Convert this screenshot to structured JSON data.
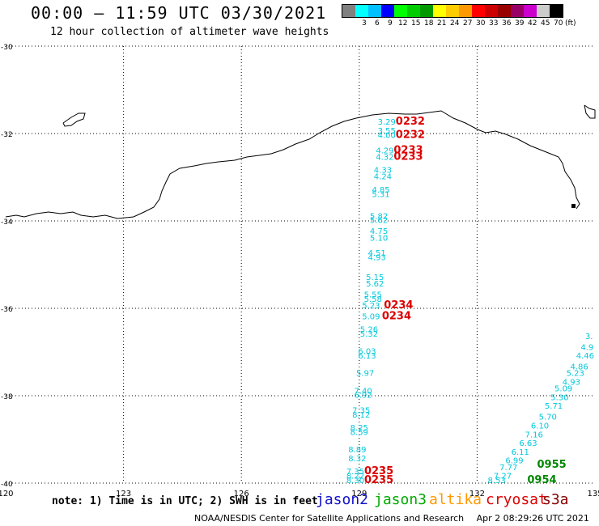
{
  "header": {
    "title": "00:00 – 11:59 UTC 03/30/2021",
    "subtitle": "12 hour collection of altimeter wave heights"
  },
  "legend": {
    "unit": "(ft)",
    "bins": [
      {
        "label": "",
        "color": "#808080"
      },
      {
        "label": "3",
        "color": "#00ffff"
      },
      {
        "label": "6",
        "color": "#00c0ff"
      },
      {
        "label": "9",
        "color": "#0000ff"
      },
      {
        "label": "12",
        "color": "#00ff00"
      },
      {
        "label": "15",
        "color": "#00cc00"
      },
      {
        "label": "18",
        "color": "#009900"
      },
      {
        "label": "21",
        "color": "#ffff00"
      },
      {
        "label": "24",
        "color": "#ffcc00"
      },
      {
        "label": "27",
        "color": "#ff9900"
      },
      {
        "label": "30",
        "color": "#ff0000"
      },
      {
        "label": "33",
        "color": "#cc0000"
      },
      {
        "label": "36",
        "color": "#990000"
      },
      {
        "label": "39",
        "color": "#990066"
      },
      {
        "label": "42",
        "color": "#cc00cc"
      },
      {
        "label": "45",
        "color": "#cccccc"
      },
      {
        "label": "70",
        "color": "#000000"
      }
    ]
  },
  "map": {
    "lon_ticks": [
      "120",
      "123",
      "126",
      "129",
      "132",
      "135"
    ],
    "lat_ticks": [
      "-30",
      "-32",
      "-34",
      "-36",
      "-38",
      "-40"
    ],
    "lon_range": [
      120,
      135
    ],
    "lat_range": [
      -30,
      -40
    ],
    "track_a_color": "#00c8dc",
    "track_a": [
      {
        "lon": 129.7,
        "lat": -31.8,
        "v": "3.29"
      },
      {
        "lon": 129.7,
        "lat": -32.0,
        "v": "3.55"
      },
      {
        "lon": 129.7,
        "lat": -32.1,
        "v": "4.00"
      },
      {
        "lon": 129.65,
        "lat": -32.45,
        "v": "4.29"
      },
      {
        "lon": 129.65,
        "lat": -32.6,
        "v": "4.32"
      },
      {
        "lon": 129.6,
        "lat": -32.9,
        "v": "4.33"
      },
      {
        "lon": 129.6,
        "lat": -33.05,
        "v": "4.24"
      },
      {
        "lon": 129.55,
        "lat": -33.35,
        "v": "4.85"
      },
      {
        "lon": 129.55,
        "lat": -33.45,
        "v": "5.31"
      },
      {
        "lon": 129.5,
        "lat": -33.95,
        "v": "5.82"
      },
      {
        "lon": 129.5,
        "lat": -34.05,
        "v": "5.62"
      },
      {
        "lon": 129.5,
        "lat": -34.3,
        "v": "4.75"
      },
      {
        "lon": 129.5,
        "lat": -34.45,
        "v": "5.10"
      },
      {
        "lon": 129.45,
        "lat": -34.8,
        "v": "4.51"
      },
      {
        "lon": 129.45,
        "lat": -34.9,
        "v": "4.93"
      },
      {
        "lon": 129.4,
        "lat": -35.35,
        "v": "5.15"
      },
      {
        "lon": 129.4,
        "lat": -35.5,
        "v": "5.62"
      },
      {
        "lon": 129.35,
        "lat": -35.75,
        "v": "5.55"
      },
      {
        "lon": 129.35,
        "lat": -35.85,
        "v": "5.58"
      },
      {
        "lon": 129.3,
        "lat": -36.0,
        "v": "5.23"
      },
      {
        "lon": 129.3,
        "lat": -36.25,
        "v": "5.09"
      },
      {
        "lon": 129.25,
        "lat": -36.55,
        "v": "5.26"
      },
      {
        "lon": 129.25,
        "lat": -36.65,
        "v": "5.32"
      },
      {
        "lon": 129.2,
        "lat": -37.05,
        "v": "6.03"
      },
      {
        "lon": 129.2,
        "lat": -37.15,
        "v": "6.13"
      },
      {
        "lon": 129.15,
        "lat": -37.55,
        "v": "5.97"
      },
      {
        "lon": 129.1,
        "lat": -37.95,
        "v": "7.40"
      },
      {
        "lon": 129.1,
        "lat": -38.05,
        "v": "6.92"
      },
      {
        "lon": 129.05,
        "lat": -38.4,
        "v": "7.35"
      },
      {
        "lon": 129.05,
        "lat": -38.5,
        "v": "8.12"
      },
      {
        "lon": 129.0,
        "lat": -38.8,
        "v": "8.25"
      },
      {
        "lon": 129.0,
        "lat": -38.9,
        "v": "8.59"
      },
      {
        "lon": 128.95,
        "lat": -39.3,
        "v": "8.89"
      },
      {
        "lon": 128.95,
        "lat": -39.5,
        "v": "8.32"
      },
      {
        "lon": 128.9,
        "lat": -39.8,
        "v": "7.35"
      },
      {
        "lon": 128.9,
        "lat": -39.9,
        "v": "8.22"
      },
      {
        "lon": 128.9,
        "lat": -40.0,
        "v": "8.30"
      }
    ],
    "track_a_times": [
      {
        "lon": 130.3,
        "lat": -31.8,
        "v": "0232"
      },
      {
        "lon": 130.3,
        "lat": -32.1,
        "v": "0232"
      },
      {
        "lon": 130.25,
        "lat": -32.45,
        "v": "0233"
      },
      {
        "lon": 130.25,
        "lat": -32.6,
        "v": "0233"
      },
      {
        "lon": 130.0,
        "lat": -36.0,
        "v": "0234"
      },
      {
        "lon": 129.95,
        "lat": -36.25,
        "v": "0234"
      },
      {
        "lon": 129.5,
        "lat": -39.8,
        "v": "0235"
      },
      {
        "lon": 129.5,
        "lat": -40.0,
        "v": "0235"
      }
    ],
    "track_a_time_color": "#dd0000",
    "track_b_color": "#00c8dc",
    "track_b": [
      {
        "lon": 134.85,
        "lat": -36.7,
        "v": "3."
      },
      {
        "lon": 134.8,
        "lat": -36.95,
        "v": "4.9"
      },
      {
        "lon": 134.75,
        "lat": -37.15,
        "v": "4.46"
      },
      {
        "lon": 134.6,
        "lat": -37.4,
        "v": "4.86"
      },
      {
        "lon": 134.5,
        "lat": -37.55,
        "v": "5.23"
      },
      {
        "lon": 134.4,
        "lat": -37.75,
        "v": "4.93"
      },
      {
        "lon": 134.2,
        "lat": -37.9,
        "v": "5.09"
      },
      {
        "lon": 134.1,
        "lat": -38.1,
        "v": "5.30"
      },
      {
        "lon": 133.95,
        "lat": -38.3,
        "v": "5.71"
      },
      {
        "lon": 133.8,
        "lat": -38.55,
        "v": "5.70"
      },
      {
        "lon": 133.6,
        "lat": -38.75,
        "v": "6.10"
      },
      {
        "lon": 133.45,
        "lat": -38.95,
        "v": "7.16"
      },
      {
        "lon": 133.3,
        "lat": -39.15,
        "v": "6.63"
      },
      {
        "lon": 133.1,
        "lat": -39.35,
        "v": "6.11"
      },
      {
        "lon": 132.95,
        "lat": -39.55,
        "v": "6.99"
      },
      {
        "lon": 132.8,
        "lat": -39.7,
        "v": "7.77"
      },
      {
        "lon": 132.65,
        "lat": -39.9,
        "v": "7.27"
      },
      {
        "lon": 132.5,
        "lat": -40.0,
        "v": "8.53"
      }
    ],
    "track_b_times": [
      {
        "lon": 133.9,
        "lat": -39.65,
        "v": "0955"
      },
      {
        "lon": 133.65,
        "lat": -40.0,
        "v": "0954"
      }
    ],
    "track_b_time_color": "#008800"
  },
  "footer": {
    "note": "note: 1) Time is in UTC; 2) SWH is in feet",
    "satellites": [
      {
        "name": "jason2",
        "color": "#1010cc"
      },
      {
        "name": "jason3",
        "color": "#00aa00"
      },
      {
        "name": "altika",
        "color": "#ff9900"
      },
      {
        "name": "cryosat",
        "color": "#dd0000"
      },
      {
        "name": "s3a",
        "color": "#880000"
      }
    ],
    "credit": "NOAA/NESDIS Center for Satellite Applications and Research",
    "timestamp": "Apr  2 08:29:26 UTC 2021"
  }
}
